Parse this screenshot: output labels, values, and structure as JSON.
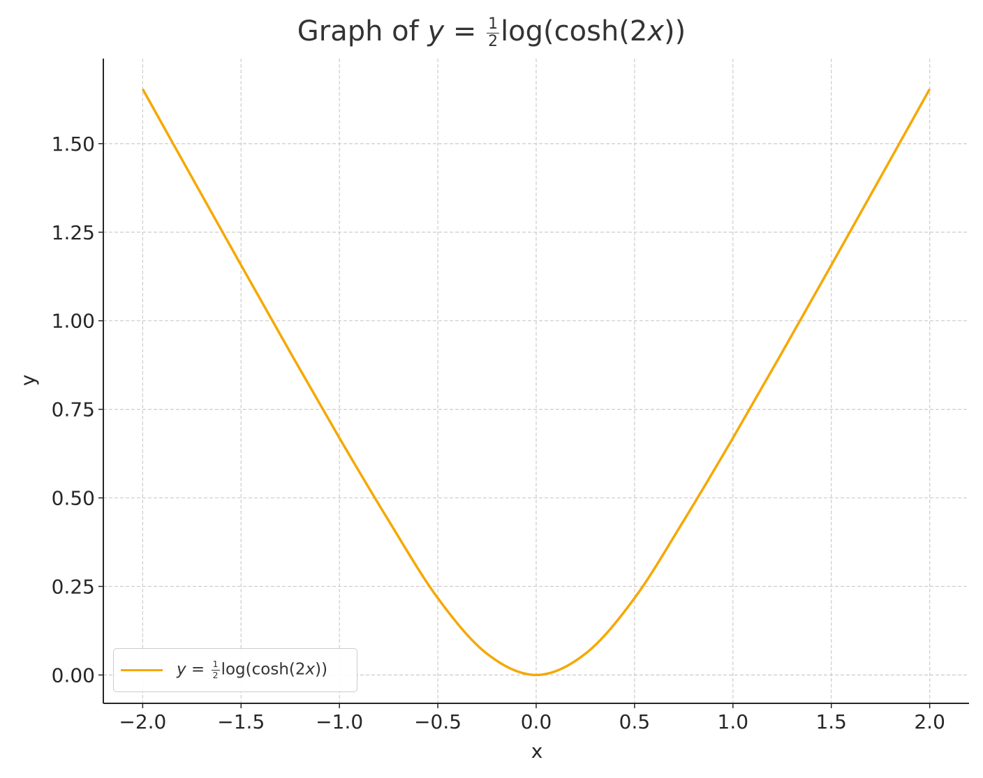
{
  "chart_data": {
    "type": "line",
    "title": {
      "prefix": "Graph of ",
      "lhs": "y",
      "eq": " = ",
      "frac_num": "1",
      "frac_den": "2",
      "rhs": "log(cosh(2",
      "var": "x",
      "close": "))"
    },
    "xlabel": "x",
    "ylabel": "y",
    "xlim": [
      -2.2,
      2.2
    ],
    "ylim": [
      -0.08,
      1.74
    ],
    "xticks": [
      -2.0,
      -1.5,
      -1.0,
      -0.5,
      0.0,
      0.5,
      1.0,
      1.5,
      2.0
    ],
    "xtick_labels": [
      "−2.0",
      "−1.5",
      "−1.0",
      "−0.5",
      "0.0",
      "0.5",
      "1.0",
      "1.5",
      "2.0"
    ],
    "yticks": [
      0.0,
      0.25,
      0.5,
      0.75,
      1.0,
      1.25,
      1.5
    ],
    "ytick_labels": [
      "0.00",
      "0.25",
      "0.50",
      "0.75",
      "1.00",
      "1.25",
      "1.50"
    ],
    "grid": true,
    "legend_position": "lower-left",
    "series": [
      {
        "name": {
          "lhs": "y",
          "eq": " = ",
          "frac_num": "1",
          "frac_den": "2",
          "rhs": "log(cosh(2",
          "var": "x",
          "close": "))"
        },
        "color": "#f5a800",
        "x": [
          -2.0,
          -1.75,
          -1.5,
          -1.25,
          -1.0,
          -0.75,
          -0.5,
          -0.25,
          0.0,
          0.25,
          0.5,
          0.75,
          1.0,
          1.25,
          1.5,
          1.75,
          2.0
        ],
        "y": [
          1.654,
          1.405,
          1.157,
          0.911,
          0.669,
          0.436,
          0.217,
          0.06,
          0.0,
          0.06,
          0.217,
          0.436,
          0.669,
          0.911,
          1.157,
          1.405,
          1.654
        ]
      }
    ]
  }
}
